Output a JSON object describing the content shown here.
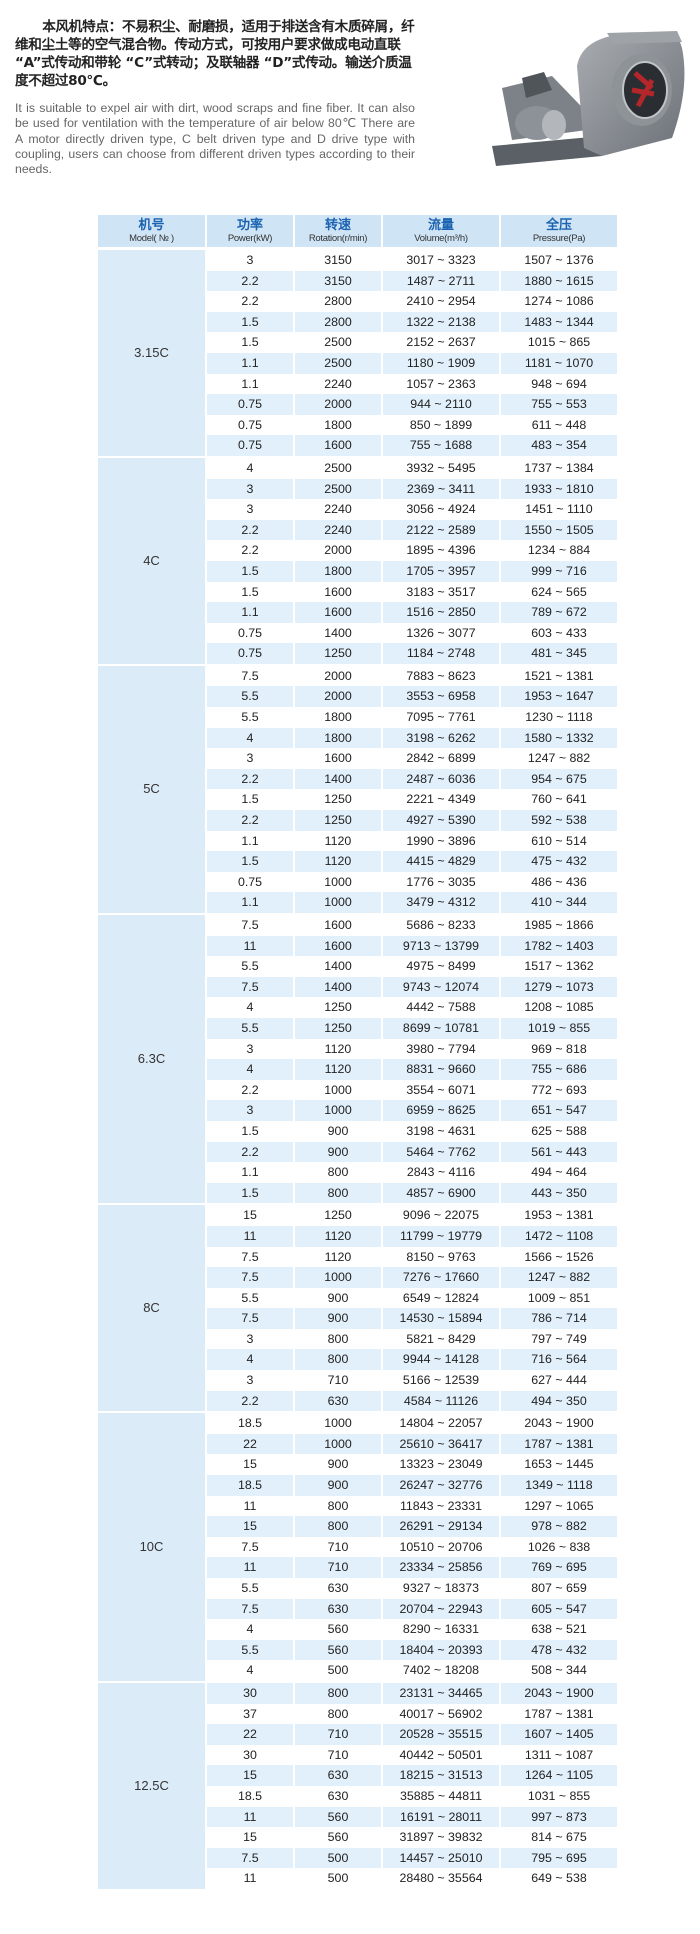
{
  "intro": {
    "chinese": "本风机特点：不易积尘、耐磨损，适用于排送含有木质碎屑，纤维和尘土等的空气混合物。传动方式，可按用户要求做成电动直联 “A”式传动和带轮 “C”式转动；及联轴器 “D”式传动。输送介质温度不超过80℃。",
    "english": "It is suitable to expel air with dirt, wood scraps and fine fiber. It can also be used for ventilation with the temperature of air below 80℃ There are A motor directly driven type, C belt driven type and D drive type with coupling, users can choose from different driven types according to their needs.",
    "image_icon": "centrifugal-fan-photo"
  },
  "colors": {
    "header_bg": "#cfe4f5",
    "header_text": "#1b63b0",
    "model_bg": "#dcebf8",
    "stripe": "#e2f0fb"
  },
  "table": {
    "headers": [
      {
        "cn": "机号",
        "en": "Model( № )"
      },
      {
        "cn": "功率",
        "en": "Power(kW)"
      },
      {
        "cn": "转速",
        "en": "Rotation(r/min)"
      },
      {
        "cn": "流量",
        "en": "Volume(m³/h)"
      },
      {
        "cn": "全压",
        "en": "Pressure(Pa)"
      }
    ],
    "groups": [
      {
        "model": "3.15C",
        "first_row_shaded": false,
        "rows": [
          [
            "3",
            "3150",
            "3017 ~ 3323",
            "1507 ~ 1376"
          ],
          [
            "2.2",
            "3150",
            "1487 ~ 2711",
            "1880 ~ 1615"
          ],
          [
            "2.2",
            "2800",
            "2410 ~ 2954",
            "1274 ~ 1086"
          ],
          [
            "1.5",
            "2800",
            "1322 ~ 2138",
            "1483 ~ 1344"
          ],
          [
            "1.5",
            "2500",
            "2152 ~ 2637",
            "1015 ~ 865"
          ],
          [
            "1.1",
            "2500",
            "1180 ~ 1909",
            "1181 ~ 1070"
          ],
          [
            "1.1",
            "2240",
            "1057 ~ 2363",
            "948 ~ 694"
          ],
          [
            "0.75",
            "2000",
            "944 ~ 2110",
            "755 ~ 553"
          ],
          [
            "0.75",
            "1800",
            "850 ~ 1899",
            "611 ~ 448"
          ],
          [
            "0.75",
            "1600",
            "755 ~ 1688",
            "483 ~ 354"
          ]
        ]
      },
      {
        "model": "4C",
        "first_row_shaded": false,
        "rows": [
          [
            "4",
            "2500",
            "3932 ~ 5495",
            "1737 ~ 1384"
          ],
          [
            "3",
            "2500",
            "2369 ~ 3411",
            "1933 ~ 1810"
          ],
          [
            "3",
            "2240",
            "3056 ~ 4924",
            "1451 ~ 1110"
          ],
          [
            "2.2",
            "2240",
            "2122 ~ 2589",
            "1550 ~ 1505"
          ],
          [
            "2.2",
            "2000",
            "1895 ~ 4396",
            "1234 ~ 884"
          ],
          [
            "1.5",
            "1800",
            "1705 ~ 3957",
            "999 ~ 716"
          ],
          [
            "1.5",
            "1600",
            "3183 ~ 3517",
            "624 ~ 565"
          ],
          [
            "1.1",
            "1600",
            "1516 ~ 2850",
            "789 ~ 672"
          ],
          [
            "0.75",
            "1400",
            "1326 ~ 3077",
            "603 ~ 433"
          ],
          [
            "0.75",
            "1250",
            "1184 ~ 2748",
            "481 ~ 345"
          ]
        ]
      },
      {
        "model": "5C",
        "first_row_shaded": false,
        "rows": [
          [
            "7.5",
            "2000",
            "7883 ~ 8623",
            "1521 ~ 1381"
          ],
          [
            "5.5",
            "2000",
            "3553 ~ 6958",
            "1953 ~ 1647"
          ],
          [
            "5.5",
            "1800",
            "7095 ~ 7761",
            "1230 ~ 1118"
          ],
          [
            "4",
            "1800",
            "3198 ~ 6262",
            "1580 ~ 1332"
          ],
          [
            "3",
            "1600",
            "2842 ~ 6899",
            "1247 ~ 882"
          ],
          [
            "2.2",
            "1400",
            "2487 ~ 6036",
            "954 ~ 675"
          ],
          [
            "1.5",
            "1250",
            "2221 ~ 4349",
            "760 ~ 641"
          ],
          [
            "2.2",
            "1250",
            "4927 ~ 5390",
            "592 ~ 538"
          ],
          [
            "1.1",
            "1120",
            "1990 ~ 3896",
            "610 ~ 514"
          ],
          [
            "1.5",
            "1120",
            "4415 ~ 4829",
            "475 ~ 432"
          ],
          [
            "0.75",
            "1000",
            "1776 ~ 3035",
            "486 ~ 436"
          ],
          [
            "1.1",
            "1000",
            "3479 ~ 4312",
            "410 ~ 344"
          ]
        ]
      },
      {
        "model": "6.3C",
        "first_row_shaded": false,
        "rows": [
          [
            "7.5",
            "1600",
            "5686 ~ 8233",
            "1985 ~ 1866"
          ],
          [
            "11",
            "1600",
            "9713 ~ 13799",
            "1782 ~ 1403"
          ],
          [
            "5.5",
            "1400",
            "4975 ~ 8499",
            "1517 ~ 1362"
          ],
          [
            "7.5",
            "1400",
            "9743 ~ 12074",
            "1279 ~ 1073"
          ],
          [
            "4",
            "1250",
            "4442 ~ 7588",
            "1208 ~ 1085"
          ],
          [
            "5.5",
            "1250",
            "8699 ~ 10781",
            "1019 ~ 855"
          ],
          [
            "3",
            "1120",
            "3980 ~ 7794",
            "969 ~ 818"
          ],
          [
            "4",
            "1120",
            "8831 ~ 9660",
            "755 ~ 686"
          ],
          [
            "2.2",
            "1000",
            "3554 ~ 6071",
            "772 ~ 693"
          ],
          [
            "3",
            "1000",
            "6959 ~ 8625",
            "651 ~ 547"
          ],
          [
            "1.5",
            "900",
            "3198 ~ 4631",
            "625 ~ 588"
          ],
          [
            "2.2",
            "900",
            "5464 ~ 7762",
            "561 ~ 443"
          ],
          [
            "1.1",
            "800",
            "2843 ~ 4116",
            "494 ~ 464"
          ],
          [
            "1.5",
            "800",
            "4857 ~ 6900",
            "443 ~ 350"
          ]
        ]
      },
      {
        "model": "8C",
        "first_row_shaded": false,
        "rows": [
          [
            "15",
            "1250",
            "9096 ~ 22075",
            "1953 ~ 1381"
          ],
          [
            "11",
            "1120",
            "11799 ~ 19779",
            "1472 ~ 1108"
          ],
          [
            "7.5",
            "1120",
            "8150 ~ 9763",
            "1566 ~ 1526"
          ],
          [
            "7.5",
            "1000",
            "7276 ~ 17660",
            "1247 ~ 882"
          ],
          [
            "5.5",
            "900",
            "6549 ~ 12824",
            "1009 ~ 851"
          ],
          [
            "7.5",
            "900",
            "14530 ~ 15894",
            "786 ~ 714"
          ],
          [
            "3",
            "800",
            "5821 ~ 8429",
            "797 ~ 749"
          ],
          [
            "4",
            "800",
            "9944 ~ 14128",
            "716 ~ 564"
          ],
          [
            "3",
            "710",
            "5166 ~ 12539",
            "627 ~ 444"
          ],
          [
            "2.2",
            "630",
            "4584 ~ 11126",
            "494 ~ 350"
          ]
        ]
      },
      {
        "model": "10C",
        "first_row_shaded": false,
        "rows": [
          [
            "18.5",
            "1000",
            "14804 ~ 22057",
            "2043 ~ 1900"
          ],
          [
            "22",
            "1000",
            "25610 ~ 36417",
            "1787 ~ 1381"
          ],
          [
            "15",
            "900",
            "13323 ~ 23049",
            "1653 ~ 1445"
          ],
          [
            "18.5",
            "900",
            "26247 ~ 32776",
            "1349 ~ 1118"
          ],
          [
            "11",
            "800",
            "11843 ~ 23331",
            "1297 ~ 1065"
          ],
          [
            "15",
            "800",
            "26291 ~ 29134",
            "978 ~ 882"
          ],
          [
            "7.5",
            "710",
            "10510 ~ 20706",
            "1026 ~ 838"
          ],
          [
            "11",
            "710",
            "23334 ~ 25856",
            "769 ~ 695"
          ],
          [
            "5.5",
            "630",
            "9327 ~ 18373",
            "807 ~ 659"
          ],
          [
            "7.5",
            "630",
            "20704 ~ 22943",
            "605 ~ 547"
          ],
          [
            "4",
            "560",
            "8290 ~ 16331",
            "638 ~ 521"
          ],
          [
            "5.5",
            "560",
            "18404 ~ 20393",
            "478 ~ 432"
          ],
          [
            "4",
            "500",
            "7402 ~ 18208",
            "508 ~ 344"
          ]
        ]
      },
      {
        "model": "12.5C",
        "first_row_shaded": true,
        "rows": [
          [
            "30",
            "800",
            "23131 ~ 34465",
            "2043 ~ 1900"
          ],
          [
            "37",
            "800",
            "40017 ~ 56902",
            "1787 ~ 1381"
          ],
          [
            "22",
            "710",
            "20528 ~ 35515",
            "1607 ~ 1405"
          ],
          [
            "30",
            "710",
            "40442 ~ 50501",
            "1311 ~ 1087"
          ],
          [
            "15",
            "630",
            "18215 ~ 31513",
            "1264 ~ 1105"
          ],
          [
            "18.5",
            "630",
            "35885 ~ 44811",
            "1031 ~ 855"
          ],
          [
            "11",
            "560",
            "16191 ~ 28011",
            "997 ~ 873"
          ],
          [
            "15",
            "560",
            "31897 ~ 39832",
            "814 ~ 675"
          ],
          [
            "7.5",
            "500",
            "14457 ~ 25010",
            "795 ~ 695"
          ],
          [
            "11",
            "500",
            "28480 ~ 35564",
            "649 ~ 538"
          ]
        ]
      }
    ]
  }
}
